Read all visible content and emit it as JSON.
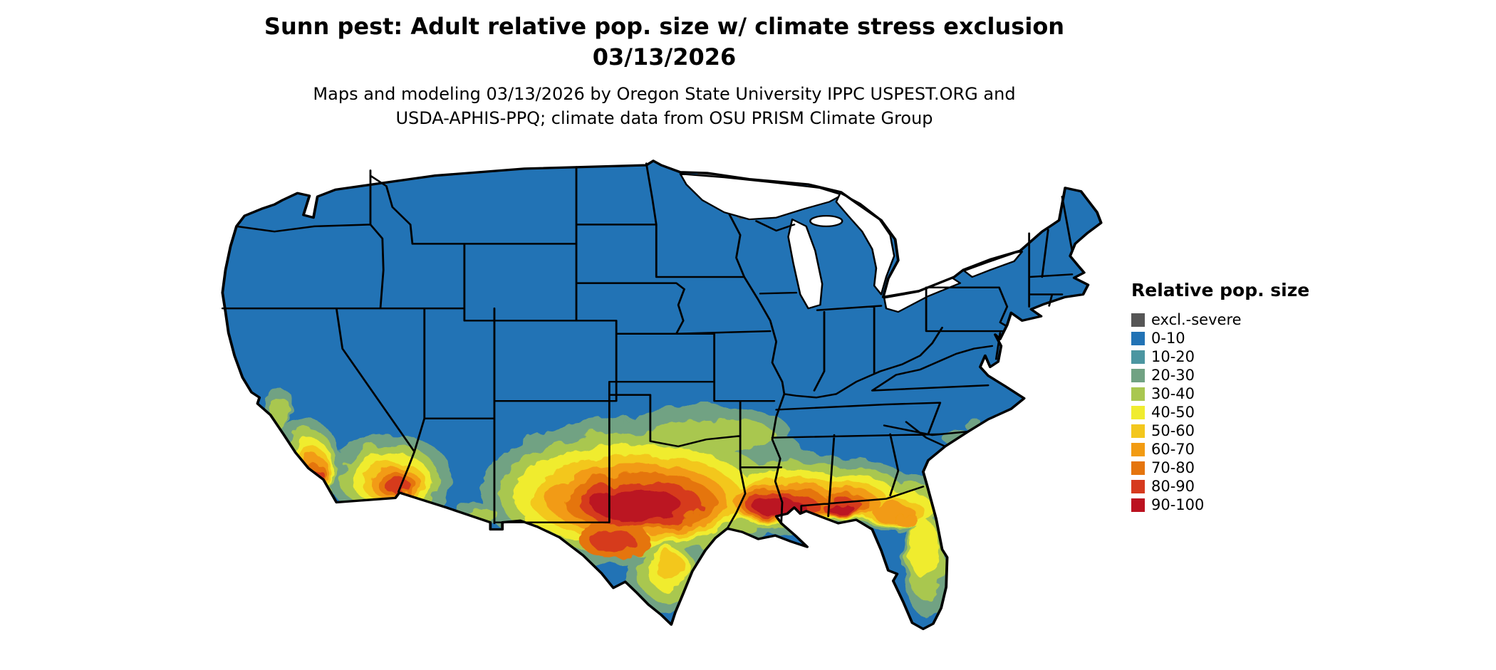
{
  "title": {
    "line1": "Sunn pest: Adult relative pop. size w/ climate stress exclusion",
    "line2": "03/13/2026"
  },
  "subtitle": {
    "line1": "Maps and modeling 03/13/2026 by Oregon State University IPPC USPEST.ORG and",
    "line2": "USDA-APHIS-PPQ; climate data from OSU PRISM Climate Group"
  },
  "legend": {
    "title": "Relative pop. size",
    "items": [
      {
        "label": "excl.-severe",
        "color": "#565656"
      },
      {
        "label": "0-10",
        "color": "#2273B5"
      },
      {
        "label": "10-20",
        "color": "#4C96A1"
      },
      {
        "label": "20-30",
        "color": "#71A283"
      },
      {
        "label": "30-40",
        "color": "#A9C750"
      },
      {
        "label": "40-50",
        "color": "#F0EC2F"
      },
      {
        "label": "50-60",
        "color": "#F3C71D"
      },
      {
        "label": "60-70",
        "color": "#F29B12"
      },
      {
        "label": "70-80",
        "color": "#E5750E"
      },
      {
        "label": "80-90",
        "color": "#D63A1E"
      },
      {
        "label": "90-100",
        "color": "#BB1220"
      }
    ]
  },
  "map": {
    "colors": {
      "land": "#2273B5",
      "water": "#FFFFFF",
      "border": "#000000"
    }
  }
}
